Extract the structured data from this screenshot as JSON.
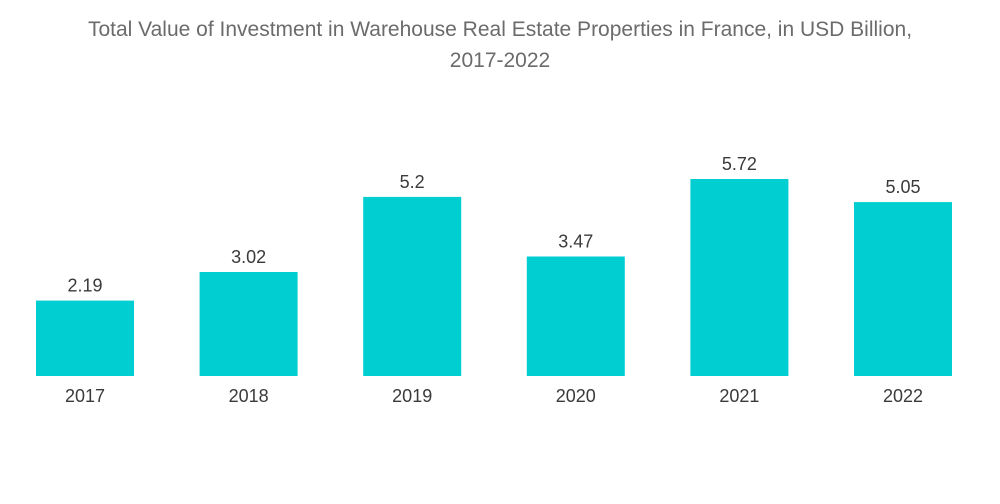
{
  "chart_data": {
    "type": "bar",
    "title_line1": "Total Value of Investment in Warehouse Real Estate Properties in France, in USD Billion,",
    "title_line2": "2017-2022",
    "categories": [
      "2017",
      "2018",
      "2019",
      "2020",
      "2021",
      "2022"
    ],
    "values": [
      2.19,
      3.02,
      5.2,
      3.47,
      5.72,
      5.05
    ],
    "xlabel": "",
    "ylabel": "",
    "ylim": [
      0,
      5.72
    ],
    "grid": false,
    "bar_color": "#00CED1"
  }
}
